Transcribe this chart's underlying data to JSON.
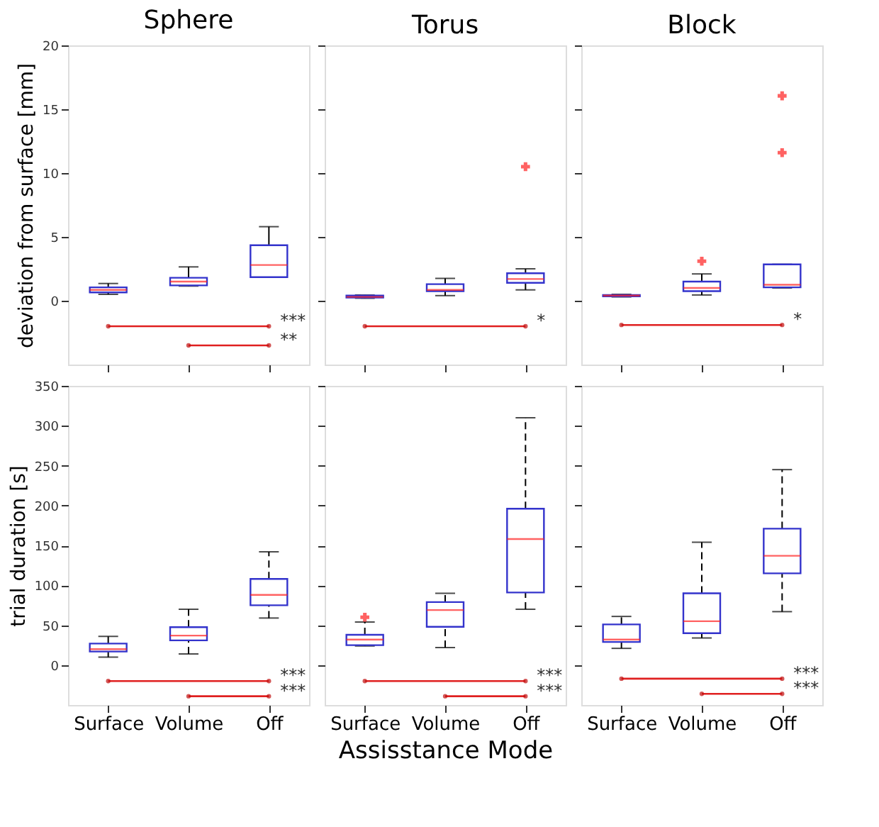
{
  "chart_data": [
    {
      "type": "box",
      "title": "Sphere",
      "ylabel": "deviation from surface [mm]",
      "categories": [
        "Surface",
        "Volume",
        "Off"
      ],
      "ylim": [
        -5,
        20
      ],
      "yticks": [
        0,
        5,
        10,
        15,
        20
      ],
      "tick_labels": "y",
      "grid": false,
      "line_style": "solid",
      "series": [
        {
          "color": "#3333cc",
          "boxes": [
            {
              "low": 0.5,
              "q1": 0.65,
              "median": 0.85,
              "q3": 1.05,
              "high": 1.35
            },
            {
              "low": 1.15,
              "q1": 1.2,
              "median": 1.5,
              "q3": 1.8,
              "high": 2.65
            },
            {
              "low": 1.85,
              "q1": 1.85,
              "median": 2.8,
              "q3": 4.35,
              "high": 5.8
            }
          ]
        }
      ],
      "annotations": [
        {
          "text": "***",
          "x": "Off",
          "y": -2
        },
        {
          "text": "**",
          "x": "Off",
          "y": -3.5
        }
      ]
    },
    {
      "type": "box",
      "title": "Torus",
      "categories": [
        "Surface",
        "Volume",
        "Off"
      ],
      "ylim": [
        -5,
        20
      ],
      "yticks": [
        0,
        5,
        10,
        15,
        20
      ],
      "tick_labels": false,
      "grid": false,
      "line_style": "solid",
      "series": [
        {
          "color": "#3333cc",
          "boxes": [
            {
              "low": 0.2,
              "q1": 0.25,
              "median": 0.3,
              "q3": 0.4,
              "high": 0.45
            },
            {
              "low": 0.4,
              "q1": 0.75,
              "median": 0.85,
              "q3": 1.3,
              "high": 1.75
            },
            {
              "low": 0.85,
              "q1": 1.4,
              "median": 1.7,
              "q3": 2.15,
              "high": 2.5,
              "outliers": [
                10.5
              ]
            }
          ]
        }
      ],
      "annotations": [
        {
          "text": "*",
          "x": "Off",
          "y": -2
        }
      ]
    },
    {
      "type": "box",
      "title": "Block",
      "categories": [
        "Surface",
        "Volume",
        "Off"
      ],
      "ylim": [
        -5,
        20
      ],
      "yticks": [
        0,
        5,
        10,
        15,
        20
      ],
      "tick_labels": false,
      "grid": false,
      "line_style": "solid",
      "series": [
        {
          "color": "#3333cc",
          "boxes": [
            {
              "low": 0.3,
              "q1": 0.35,
              "median": 0.4,
              "q3": 0.45,
              "high": 0.5
            },
            {
              "low": 0.45,
              "q1": 0.75,
              "median": 1.0,
              "q3": 1.5,
              "high": 2.1,
              "outliers": [
                3.1
              ]
            },
            {
              "low": 1.0,
              "q1": 1.05,
              "median": 1.25,
              "q3": 2.85,
              "high": 2.85,
              "outliers": [
                11.6,
                16.05
              ]
            }
          ]
        }
      ],
      "annotations": [
        {
          "text": "*",
          "x": "Off",
          "y": -1.9
        }
      ]
    },
    {
      "type": "box",
      "ylabel": "trial duration [s]",
      "categories": [
        "Surface",
        "Volume",
        "Off"
      ],
      "ylim": [
        -50,
        350
      ],
      "yticks": [
        0,
        50,
        100,
        150,
        200,
        250,
        300,
        350
      ],
      "grid": false,
      "line_style": "dashed",
      "series": [
        {
          "color": "#3333cc",
          "boxes": [
            {
              "low": 10,
              "q1": 17,
              "median": 20,
              "q3": 27,
              "high": 36
            },
            {
              "low": 14,
              "q1": 31,
              "median": 37,
              "q3": 47.5,
              "high": 70
            },
            {
              "low": 59,
              "q1": 75,
              "median": 88,
              "q3": 108,
              "high": 142
            }
          ]
        }
      ],
      "annotations": [
        {
          "text": "***",
          "x": "Off",
          "y": -20
        },
        {
          "text": "***",
          "x": "Off",
          "y": -39
        }
      ]
    },
    {
      "type": "box",
      "xlabel": "Assisstance Mode",
      "categories": [
        "Surface",
        "Volume",
        "Off"
      ],
      "ylim": [
        -50,
        350
      ],
      "yticks": [
        0,
        50,
        100,
        150,
        200,
        250,
        300,
        350
      ],
      "tick_labels": "x",
      "grid": false,
      "line_style": "dashed",
      "series": [
        {
          "color": "#3333cc",
          "boxes": [
            {
              "low": 24,
              "q1": 25,
              "median": 32,
              "q3": 38,
              "high": 54,
              "outliers": [
                60
              ]
            },
            {
              "low": 22,
              "q1": 48,
              "median": 69,
              "q3": 79,
              "high": 90
            },
            {
              "low": 70,
              "q1": 91,
              "median": 158,
              "q3": 196,
              "high": 310
            }
          ]
        }
      ],
      "annotations": [
        {
          "text": "***",
          "x": "Off",
          "y": -20
        },
        {
          "text": "***",
          "x": "Off",
          "y": -39
        }
      ]
    },
    {
      "type": "box",
      "categories": [
        "Surface",
        "Volume",
        "Off"
      ],
      "ylim": [
        -50,
        350
      ],
      "yticks": [
        0,
        50,
        100,
        150,
        200,
        250,
        300,
        350
      ],
      "tick_labels": "x",
      "grid": false,
      "line_style": "dashed",
      "series": [
        {
          "color": "#3333cc",
          "boxes": [
            {
              "low": 21,
              "q1": 29,
              "median": 32,
              "q3": 51,
              "high": 61
            },
            {
              "low": 34,
              "q1": 40,
              "median": 55,
              "q3": 90,
              "high": 154
            },
            {
              "low": 67,
              "q1": 115,
              "median": 137,
              "q3": 171,
              "high": 245
            }
          ]
        }
      ],
      "annotations": [
        {
          "text": "***",
          "x": "Off",
          "y": -17
        },
        {
          "text": "***",
          "x": "Off",
          "y": -36
        }
      ]
    }
  ]
}
